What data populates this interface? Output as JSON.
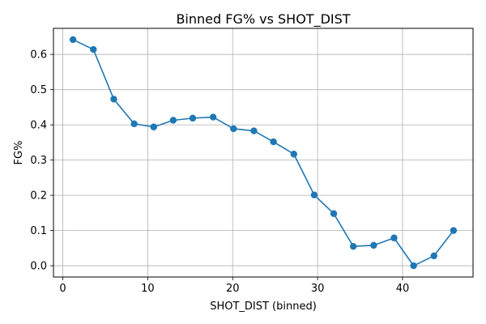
{
  "chart_data": {
    "type": "line",
    "title": "Binned FG% vs SHOT_DIST",
    "xlabel": "SHOT_DIST (binned)",
    "ylabel": "FG%",
    "xlim": [
      -1.1,
      48.3
    ],
    "ylim": [
      -0.032,
      0.674
    ],
    "xticks": [
      0,
      10,
      20,
      30,
      40
    ],
    "yticks": [
      0.0,
      0.1,
      0.2,
      0.3,
      0.4,
      0.5,
      0.6
    ],
    "ytick_labels": [
      "0.0",
      "0.1",
      "0.2",
      "0.3",
      "0.4",
      "0.5",
      "0.6"
    ],
    "grid": true,
    "legend": "none",
    "colors": {
      "line": "#1f77b4",
      "grid": "#b0b0b0"
    },
    "series": [
      {
        "x": [
          1.2,
          3.6,
          6.0,
          8.4,
          10.7,
          13.0,
          15.3,
          17.7,
          20.1,
          22.5,
          24.8,
          27.2,
          29.6,
          31.9,
          34.2,
          36.6,
          39.0,
          41.3,
          43.7,
          46.0
        ],
        "y": [
          0.642,
          0.614,
          0.473,
          0.403,
          0.394,
          0.413,
          0.419,
          0.422,
          0.389,
          0.383,
          0.352,
          0.317,
          0.201,
          0.148,
          0.055,
          0.058,
          0.079,
          0.0,
          0.028,
          0.1
        ]
      }
    ]
  }
}
